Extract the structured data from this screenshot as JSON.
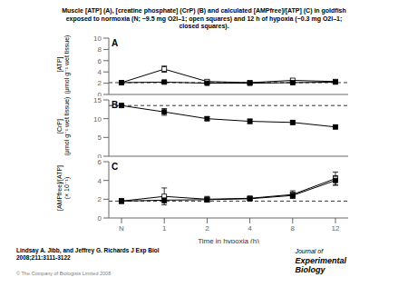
{
  "title": "Muscle [ATP] (A), [creatine phosphate] (CrP) (B) and calculated [AMPfree]/[ATP] (C) in goldfish\nexposed to normoxia (N; ~9.5 mg O2l–1; open squares) and 12 h of hypoxia (~0.3 mg O2l–1;\nclosed squares).",
  "footnote": "Lindsay A. Jibb, and Jeffrey G. Richards J Exp Biol\n2008;211:3111-3122",
  "copyright": "© The Company of Biologists Limited 2008",
  "logo_text": [
    "Journal of",
    "Experimental",
    "Biology"
  ],
  "chart_data": [
    {
      "type": "line",
      "annotations": [
        "A"
      ],
      "categories": [
        "N",
        "1",
        "2",
        "4",
        "8",
        "12"
      ],
      "y_label": "[ATP]\n(μmol g⁻¹ wet tissue)",
      "ylim": [
        0,
        10
      ],
      "yticks": [
        0,
        2,
        4,
        6,
        8,
        10
      ],
      "grid": false,
      "tick_labels": "y",
      "reference_line": {
        "y": 2.1,
        "line_style": "dashed",
        "color": "#000000"
      },
      "series": [
        {
          "color": "#000000",
          "marker": "open_square",
          "line_style": "solid",
          "values": [
            2.1,
            4.5,
            2.3,
            2.1,
            2.5,
            2.3
          ],
          "errors": [
            0.15,
            0.55,
            0.25,
            0.15,
            0.3,
            0.2
          ]
        },
        {
          "color": "#000000",
          "marker": "filled_square",
          "line_style": "solid",
          "values": [
            2.1,
            2.2,
            2.0,
            2.0,
            2.1,
            2.2
          ],
          "errors": [
            0.15,
            0.18,
            0.12,
            0.1,
            0.15,
            0.12
          ]
        }
      ]
    },
    {
      "type": "line",
      "annotations": [
        "B"
      ],
      "categories": [
        "N",
        "1",
        "2",
        "4",
        "8",
        "12"
      ],
      "y_label": "[CrP]\n(μmol g⁻¹ wet tissue)",
      "ylim": [
        0,
        15
      ],
      "yticks": [
        0,
        5,
        10,
        15
      ],
      "grid": false,
      "tick_labels": "y",
      "reference_line": {
        "y": 13.5,
        "line_style": "dashed",
        "color": "#000000"
      },
      "series": [
        {
          "color": "#000000",
          "marker": "filled_square",
          "line_style": "solid",
          "values": [
            13.5,
            11.8,
            10.0,
            9.3,
            9.0,
            7.8
          ],
          "errors": [
            0.5,
            0.9,
            0.5,
            0.6,
            0.5,
            0.45
          ]
        }
      ]
    },
    {
      "type": "line",
      "annotations": [
        "C"
      ],
      "categories": [
        "N",
        "1",
        "2",
        "4",
        "8",
        "12"
      ],
      "x_label": "Time in hypoxia (h)",
      "y_label": "[AMPfree]/[ATP]\n(× 10⁻¹)",
      "ylim": [
        0,
        6
      ],
      "yticks": [
        0,
        2,
        4,
        6
      ],
      "grid": false,
      "reference_line": {
        "y": 1.8,
        "line_style": "dashed",
        "color": "#000000"
      },
      "series": [
        {
          "color": "#000000",
          "marker": "open_square",
          "line_style": "solid",
          "values": [
            1.8,
            2.3,
            2.0,
            2.1,
            2.5,
            4.2
          ],
          "errors": [
            0.25,
            0.9,
            0.3,
            0.2,
            0.4,
            0.7
          ]
        },
        {
          "color": "#000000",
          "marker": "filled_square",
          "line_style": "solid",
          "values": [
            1.8,
            1.9,
            1.95,
            2.05,
            2.4,
            4.0
          ],
          "errors": [
            0.2,
            0.3,
            0.2,
            0.15,
            0.3,
            0.5
          ]
        }
      ]
    }
  ]
}
